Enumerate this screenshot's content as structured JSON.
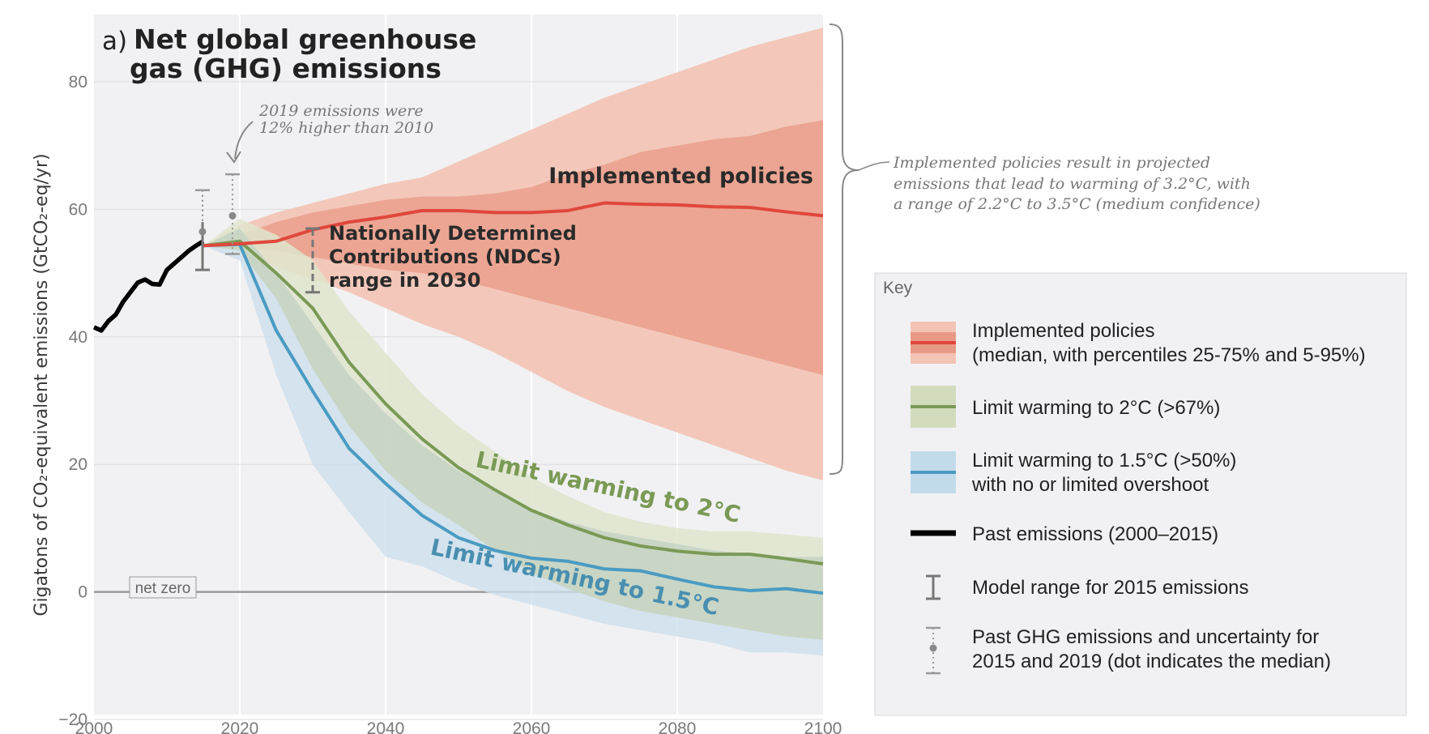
{
  "chart_data": {
    "type": "area",
    "panel_label": "a)",
    "title_line1": "Net global greenhouse",
    "title_line2": "gas (GHG) emissions",
    "ylabel": "Gigatons of CO₂-equivalent emissions (GtCO₂-eq/yr)",
    "xlim": [
      2000,
      2100
    ],
    "ylim": [
      -20,
      88
    ],
    "xticks": [
      2000,
      2020,
      2040,
      2060,
      2080,
      2100
    ],
    "yticks": [
      -20,
      0,
      20,
      40,
      60,
      80
    ],
    "grid": true,
    "net_zero_label": "net zero",
    "annotation_2019": [
      "2019 emissions were",
      "12% higher than 2010"
    ],
    "implemented_label": "Implemented policies",
    "implemented_note": [
      "Implemented policies result in projected",
      "emissions that lead to warming of 3.2°C, with",
      "a range of 2.2°C to 3.5°C (medium confidence)"
    ],
    "ndc_label": [
      "Nationally Determined",
      "Contributions (NDCs)",
      "range in 2030"
    ],
    "curve_label_2c": "Limit warming to 2°C",
    "curve_label_15c": "Limit warming to 1.5°C",
    "colors": {
      "implemented": "#e0473c",
      "implemented_band_outer": "#f3c3b4",
      "implemented_band_inner": "#e99a86",
      "limit_2c": "#7a9a55",
      "limit_2c_band_outer": "#dfe5cd",
      "limit_2c_band_inner": "#c2ceaa",
      "limit_15c": "#4a9bc2",
      "limit_15c_band_outer": "#cde0ec",
      "limit_15c_band_inner": "#a9c9da",
      "past": "#000000"
    },
    "series": [
      {
        "name": "Past emissions (2000–2015)",
        "x": [
          2000,
          2001,
          2002,
          2003,
          2004,
          2005,
          2006,
          2007,
          2008,
          2009,
          2010,
          2011,
          2012,
          2013,
          2014,
          2015
        ],
        "y": [
          41.5,
          41,
          42.5,
          43.5,
          45.5,
          47,
          48.5,
          49,
          48.3,
          48.2,
          50.5,
          51.5,
          52.5,
          53.5,
          54.3,
          55
        ]
      },
      {
        "name": "Implemented policies",
        "x": [
          2015,
          2020,
          2025,
          2030,
          2035,
          2040,
          2045,
          2050,
          2055,
          2060,
          2065,
          2070,
          2075,
          2080,
          2085,
          2090,
          2095,
          2100
        ],
        "y": [
          54.3,
          54.6,
          55,
          56.8,
          58,
          58.8,
          59.8,
          59.8,
          59.5,
          59.5,
          59.8,
          61,
          60.8,
          60.7,
          60.4,
          60.3,
          59.6,
          59
        ],
        "p5": [
          54.3,
          53.5,
          51,
          49,
          47,
          44.5,
          42,
          40,
          37.5,
          34.5,
          31.5,
          29,
          27,
          25,
          23,
          21,
          19,
          17.5
        ],
        "p25": [
          54.3,
          54,
          53.5,
          52.5,
          51.5,
          50.5,
          50,
          49,
          47.5,
          46,
          44.5,
          43,
          41.5,
          40,
          38.5,
          37,
          35.5,
          34
        ],
        "p75": [
          54.3,
          56,
          58,
          59.5,
          60.5,
          61.5,
          62,
          62,
          62.5,
          63.5,
          65.5,
          67,
          69,
          70,
          71,
          71.5,
          73,
          74
        ],
        "p95": [
          54.3,
          57.5,
          59.5,
          61,
          62.5,
          64,
          65,
          67.5,
          70,
          72.5,
          75,
          77.5,
          79.5,
          81.5,
          83.5,
          85.5,
          87,
          88.5
        ]
      },
      {
        "name": "Limit warming to 2°C (>67%)",
        "x": [
          2015,
          2020,
          2025,
          2030,
          2035,
          2040,
          2045,
          2050,
          2055,
          2060,
          2065,
          2070,
          2075,
          2080,
          2085,
          2090,
          2095,
          2100
        ],
        "y": [
          54.3,
          55,
          50,
          44.5,
          36,
          29.5,
          24,
          19.5,
          16,
          12.8,
          10.5,
          8.5,
          7.2,
          6.4,
          5.9,
          5.9,
          5.2,
          4.4
        ],
        "p5": [
          54.3,
          53.5,
          46,
          35,
          26,
          19,
          14,
          10.5,
          6.5,
          3,
          0.5,
          -1.5,
          -3,
          -4,
          -5,
          -6,
          -7,
          -7.5
        ],
        "p95": [
          54.3,
          58.5,
          56,
          52,
          44,
          37.5,
          31,
          26,
          22,
          18,
          15,
          12.5,
          11,
          10,
          9.5,
          9.5,
          9,
          8.5
        ]
      },
      {
        "name": "Limit warming to 1.5°C (>50%)",
        "x": [
          2015,
          2020,
          2025,
          2030,
          2035,
          2040,
          2045,
          2050,
          2055,
          2060,
          2065,
          2070,
          2075,
          2080,
          2085,
          2090,
          2095,
          2100
        ],
        "y": [
          54.3,
          54.5,
          41,
          31.5,
          22.5,
          17,
          12,
          8.5,
          6.5,
          5.3,
          4.8,
          3.6,
          3.3,
          2,
          0.8,
          0.2,
          0.5,
          -0.2
        ],
        "p5": [
          54.3,
          52,
          34,
          20,
          12.5,
          5.5,
          4,
          1.5,
          -0.5,
          -2,
          -3.5,
          -5,
          -6,
          -7,
          -8,
          -9.5,
          -9.5,
          -10
        ],
        "p95": [
          54.3,
          57,
          50,
          42,
          34,
          28,
          23,
          19,
          16,
          13,
          11,
          9.5,
          8.5,
          7.5,
          6.5,
          6,
          5.5,
          5.5
        ]
      }
    ],
    "model_range_2015": {
      "x": 2015,
      "low": 50.5,
      "high": 63,
      "median": 56.5
    },
    "past_uncertainty_2019": {
      "x": 2019,
      "low": 53,
      "high": 65.5,
      "median": 59
    },
    "ndc_range_2030": {
      "x": 2030,
      "low": 47,
      "high": 57
    }
  },
  "key": {
    "title": "Key",
    "items": [
      {
        "line1": "Implemented policies",
        "line2": "(median, with percentiles 25-75% and 5-95%)"
      },
      {
        "line1": "Limit warming to 2°C (>67%)",
        "line2": ""
      },
      {
        "line1": "Limit warming to 1.5°C (>50%)",
        "line2": "with no or limited overshoot"
      },
      {
        "line1": "Past emissions (2000–2015)",
        "line2": ""
      },
      {
        "line1": "Model range for 2015 emissions",
        "line2": ""
      },
      {
        "line1": "Past GHG emissions and uncertainty for",
        "line2": "2015 and 2019 (dot indicates the median)"
      }
    ]
  }
}
